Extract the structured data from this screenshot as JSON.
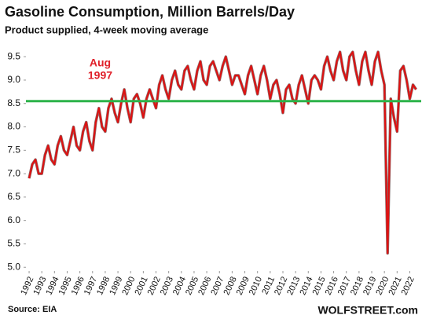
{
  "chart_data": {
    "type": "line",
    "title": "Gasoline Consumption, Million Barrels/Day",
    "subtitle": "Product supplied, 4-week moving average",
    "source": "Source: EIA",
    "watermark": "WOLFSTREET.com",
    "annotation": {
      "lines": [
        "Aug",
        "1997"
      ],
      "x": 1997.6,
      "color": "#e0202a"
    },
    "reference_line": {
      "value": 8.55,
      "color": "#2db34a"
    },
    "xlim": [
      1991.75,
      2022.9
    ],
    "xticks": [
      1992,
      1993,
      1994,
      1995,
      1996,
      1997,
      1998,
      1999,
      2000,
      2001,
      2002,
      2003,
      2004,
      2005,
      2006,
      2007,
      2008,
      2009,
      2010,
      2011,
      2012,
      2013,
      2014,
      2015,
      2016,
      2017,
      2018,
      2019,
      2020,
      2021,
      2022
    ],
    "ylim": [
      4.92,
      10.04
    ],
    "yticks": [
      {
        "value": 5,
        "label": "5.0"
      },
      5.5,
      {
        "value": 6,
        "label": "6.0"
      },
      6.5,
      {
        "value": 7,
        "label": "7.0"
      },
      7.5,
      {
        "value": 8,
        "label": "8.0"
      },
      8.5,
      {
        "value": 9,
        "label": "9.0"
      },
      9.5
    ],
    "grid": false,
    "series": [
      {
        "color": "#e01010",
        "x": [
          1992,
          1992.25,
          1992.5,
          1992.75,
          1993,
          1993.25,
          1993.5,
          1993.75,
          1994,
          1994.25,
          1994.5,
          1994.75,
          1995,
          1995.25,
          1995.5,
          1995.75,
          1996,
          1996.25,
          1996.5,
          1996.75,
          1997,
          1997.25,
          1997.5,
          1997.75,
          1998,
          1998.25,
          1998.5,
          1998.75,
          1999,
          1999.25,
          1999.5,
          1999.75,
          2000,
          2000.25,
          2000.5,
          2000.75,
          2001,
          2001.25,
          2001.5,
          2001.75,
          2002,
          2002.25,
          2002.5,
          2002.75,
          2003,
          2003.25,
          2003.5,
          2003.75,
          2004,
          2004.25,
          2004.5,
          2004.75,
          2005,
          2005.25,
          2005.5,
          2005.75,
          2006,
          2006.25,
          2006.5,
          2006.75,
          2007,
          2007.25,
          2007.5,
          2007.75,
          2008,
          2008.25,
          2008.5,
          2008.75,
          2009,
          2009.25,
          2009.5,
          2009.75,
          2010,
          2010.25,
          2010.5,
          2010.75,
          2011,
          2011.25,
          2011.5,
          2011.75,
          2012,
          2012.25,
          2012.5,
          2012.75,
          2013,
          2013.25,
          2013.5,
          2013.75,
          2014,
          2014.25,
          2014.5,
          2014.75,
          2015,
          2015.25,
          2015.5,
          2015.75,
          2016,
          2016.25,
          2016.5,
          2016.75,
          2017,
          2017.25,
          2017.5,
          2017.75,
          2018,
          2018.25,
          2018.5,
          2018.75,
          2019,
          2019.25,
          2019.5,
          2019.75,
          2020,
          2020.25,
          2020.5,
          2020.75,
          2021,
          2021.25,
          2021.5,
          2021.75,
          2022,
          2022.25,
          2022.5
        ],
        "values": [
          6.9,
          7.2,
          7.3,
          7.0,
          7.0,
          7.4,
          7.6,
          7.3,
          7.2,
          7.6,
          7.8,
          7.5,
          7.4,
          7.7,
          8.0,
          7.6,
          7.5,
          7.9,
          8.1,
          7.7,
          7.5,
          8.1,
          8.4,
          8.0,
          7.9,
          8.4,
          8.6,
          8.3,
          8.1,
          8.5,
          8.8,
          8.4,
          8.1,
          8.6,
          8.7,
          8.5,
          8.2,
          8.6,
          8.8,
          8.6,
          8.4,
          8.9,
          9.1,
          8.8,
          8.6,
          9.0,
          9.2,
          8.9,
          8.8,
          9.2,
          9.3,
          9.0,
          8.8,
          9.2,
          9.4,
          9.0,
          8.9,
          9.3,
          9.4,
          9.2,
          9.0,
          9.3,
          9.5,
          9.2,
          8.9,
          9.1,
          9.1,
          8.9,
          8.7,
          9.1,
          9.3,
          9.0,
          8.7,
          9.1,
          9.3,
          9.0,
          8.6,
          8.9,
          9.0,
          8.7,
          8.3,
          8.8,
          8.9,
          8.6,
          8.5,
          8.9,
          9.1,
          8.8,
          8.5,
          9.0,
          9.1,
          9.0,
          8.8,
          9.3,
          9.5,
          9.2,
          9.0,
          9.4,
          9.6,
          9.2,
          9.0,
          9.5,
          9.6,
          9.2,
          8.9,
          9.4,
          9.6,
          9.2,
          8.9,
          9.4,
          9.6,
          9.2,
          8.9,
          5.3,
          8.6,
          8.2,
          7.9,
          9.2,
          9.3,
          9.0,
          8.6,
          8.9,
          8.8
        ]
      }
    ]
  }
}
